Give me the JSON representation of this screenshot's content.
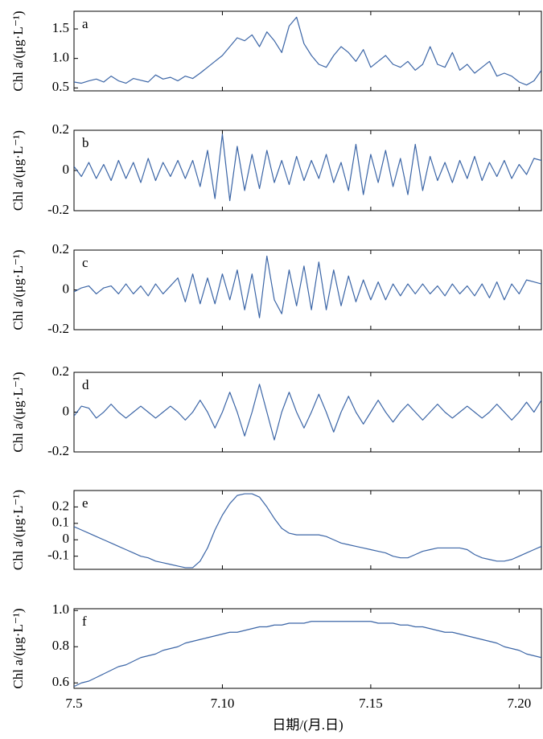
{
  "chart_data": [
    {
      "type": "line",
      "panel": "a",
      "ylabel": "Chl a/(μg·L⁻¹)",
      "color": "#3b65a6",
      "x": [
        5,
        5.25,
        5.5,
        5.75,
        6,
        6.25,
        6.5,
        6.75,
        7,
        7.25,
        7.5,
        7.75,
        8,
        8.25,
        8.5,
        8.75,
        9,
        9.25,
        9.5,
        9.75,
        10,
        10.25,
        10.5,
        10.75,
        11,
        11.25,
        11.5,
        11.75,
        12,
        12.25,
        12.5,
        12.75,
        13,
        13.25,
        13.5,
        13.75,
        14,
        14.25,
        14.5,
        14.75,
        15,
        15.25,
        15.5,
        15.75,
        16,
        16.25,
        16.5,
        16.75,
        17,
        17.25,
        17.5,
        17.75,
        18,
        18.25,
        18.5,
        18.75,
        19,
        19.25,
        19.5,
        19.75,
        20,
        20.25,
        20.5,
        20.75
      ],
      "values": [
        0.6,
        0.58,
        0.62,
        0.65,
        0.6,
        0.7,
        0.62,
        0.58,
        0.66,
        0.63,
        0.6,
        0.72,
        0.65,
        0.68,
        0.62,
        0.7,
        0.66,
        0.75,
        0.85,
        0.95,
        1.05,
        1.2,
        1.35,
        1.3,
        1.4,
        1.2,
        1.45,
        1.3,
        1.1,
        1.55,
        1.7,
        1.25,
        1.05,
        0.9,
        0.85,
        1.05,
        1.2,
        1.1,
        0.95,
        1.15,
        0.85,
        0.95,
        1.05,
        0.9,
        0.85,
        0.95,
        0.8,
        0.9,
        1.2,
        0.9,
        0.85,
        1.1,
        0.8,
        0.9,
        0.75,
        0.85,
        0.95,
        0.7,
        0.75,
        0.7,
        0.6,
        0.55,
        0.62,
        0.8
      ],
      "xlim": [
        5,
        20.75
      ],
      "xticks": [
        5,
        10,
        15,
        20
      ],
      "ylim": [
        0.45,
        1.8
      ],
      "yticks": [
        0.5,
        {
          "value": 1,
          "label": "1.0"
        },
        1.5
      ]
    },
    {
      "type": "line",
      "panel": "b",
      "ylabel": "Chl a/(μg·L⁻¹)",
      "color": "#3b65a6",
      "x": [
        5,
        5.25,
        5.5,
        5.75,
        6,
        6.25,
        6.5,
        6.75,
        7,
        7.25,
        7.5,
        7.75,
        8,
        8.25,
        8.5,
        8.75,
        9,
        9.25,
        9.5,
        9.75,
        10,
        10.25,
        10.5,
        10.75,
        11,
        11.25,
        11.5,
        11.75,
        12,
        12.25,
        12.5,
        12.75,
        13,
        13.25,
        13.5,
        13.75,
        14,
        14.25,
        14.5,
        14.75,
        15,
        15.25,
        15.5,
        15.75,
        16,
        16.25,
        16.5,
        16.75,
        17,
        17.25,
        17.5,
        17.75,
        18,
        18.25,
        18.5,
        18.75,
        19,
        19.25,
        19.5,
        19.75,
        20,
        20.25,
        20.5,
        20.75
      ],
      "values": [
        0.02,
        -0.03,
        0.04,
        -0.04,
        0.03,
        -0.05,
        0.05,
        -0.04,
        0.04,
        -0.06,
        0.06,
        -0.05,
        0.04,
        -0.03,
        0.05,
        -0.04,
        0.05,
        -0.08,
        0.1,
        -0.14,
        0.18,
        -0.15,
        0.12,
        -0.1,
        0.08,
        -0.09,
        0.1,
        -0.06,
        0.05,
        -0.07,
        0.07,
        -0.05,
        0.05,
        -0.04,
        0.08,
        -0.06,
        0.04,
        -0.1,
        0.13,
        -0.12,
        0.08,
        -0.06,
        0.1,
        -0.08,
        0.06,
        -0.12,
        0.13,
        -0.1,
        0.07,
        -0.05,
        0.04,
        -0.06,
        0.05,
        -0.04,
        0.07,
        -0.05,
        0.04,
        -0.03,
        0.05,
        -0.04,
        0.03,
        -0.02,
        0.06,
        0.05
      ],
      "xlim": [
        5,
        20.75
      ],
      "xticks": [
        5,
        10,
        15,
        20
      ],
      "ylim": [
        -0.2,
        0.2
      ],
      "yticks": [
        -0.2,
        0,
        0.2
      ]
    },
    {
      "type": "line",
      "panel": "c",
      "ylabel": "Chl a/(μg·L⁻¹)",
      "color": "#3b65a6",
      "x": [
        5,
        5.25,
        5.5,
        5.75,
        6,
        6.25,
        6.5,
        6.75,
        7,
        7.25,
        7.5,
        7.75,
        8,
        8.25,
        8.5,
        8.75,
        9,
        9.25,
        9.5,
        9.75,
        10,
        10.25,
        10.5,
        10.75,
        11,
        11.25,
        11.5,
        11.75,
        12,
        12.25,
        12.5,
        12.75,
        13,
        13.25,
        13.5,
        13.75,
        14,
        14.25,
        14.5,
        14.75,
        15,
        15.25,
        15.5,
        15.75,
        16,
        16.25,
        16.5,
        16.75,
        17,
        17.25,
        17.5,
        17.75,
        18,
        18.25,
        18.5,
        18.75,
        19,
        19.25,
        19.5,
        19.75,
        20,
        20.25,
        20.5,
        20.75
      ],
      "values": [
        -0.01,
        0.01,
        0.02,
        -0.02,
        0.01,
        0.02,
        -0.02,
        0.03,
        -0.02,
        0.02,
        -0.03,
        0.03,
        -0.02,
        0.02,
        0.06,
        -0.06,
        0.08,
        -0.07,
        0.06,
        -0.07,
        0.08,
        -0.05,
        0.1,
        -0.1,
        0.08,
        -0.14,
        0.17,
        -0.05,
        -0.12,
        0.1,
        -0.08,
        0.12,
        -0.1,
        0.14,
        -0.1,
        0.1,
        -0.08,
        0.07,
        -0.06,
        0.05,
        -0.05,
        0.04,
        -0.05,
        0.03,
        -0.03,
        0.03,
        -0.02,
        0.03,
        -0.02,
        0.02,
        -0.03,
        0.03,
        -0.02,
        0.02,
        -0.03,
        0.03,
        -0.04,
        0.04,
        -0.05,
        0.03,
        -0.02,
        0.05,
        0.04,
        0.03
      ],
      "xlim": [
        5,
        20.75
      ],
      "xticks": [
        5,
        10,
        15,
        20
      ],
      "ylim": [
        -0.2,
        0.2
      ],
      "yticks": [
        -0.2,
        0,
        0.2
      ]
    },
    {
      "type": "line",
      "panel": "d",
      "ylabel": "Chl a/(μg·L⁻¹)",
      "color": "#3b65a6",
      "x": [
        5,
        5.25,
        5.5,
        5.75,
        6,
        6.25,
        6.5,
        6.75,
        7,
        7.25,
        7.5,
        7.75,
        8,
        8.25,
        8.5,
        8.75,
        9,
        9.25,
        9.5,
        9.75,
        10,
        10.25,
        10.5,
        10.75,
        11,
        11.25,
        11.5,
        11.75,
        12,
        12.25,
        12.5,
        12.75,
        13,
        13.25,
        13.5,
        13.75,
        14,
        14.25,
        14.5,
        14.75,
        15,
        15.25,
        15.5,
        15.75,
        16,
        16.25,
        16.5,
        16.75,
        17,
        17.25,
        17.5,
        17.75,
        18,
        18.25,
        18.5,
        18.75,
        19,
        19.25,
        19.5,
        19.75,
        20,
        20.25,
        20.5,
        20.75
      ],
      "values": [
        -0.02,
        0.03,
        0.02,
        -0.03,
        0,
        0.04,
        0,
        -0.03,
        0,
        0.03,
        0,
        -0.03,
        0,
        0.03,
        0,
        -0.04,
        0,
        0.06,
        0,
        -0.08,
        0,
        0.1,
        0,
        -0.12,
        0,
        0.14,
        0,
        -0.14,
        0,
        0.1,
        0,
        -0.08,
        0,
        0.09,
        0,
        -0.1,
        0,
        0.08,
        0,
        -0.06,
        0,
        0.06,
        0,
        -0.05,
        0,
        0.04,
        0,
        -0.04,
        0,
        0.04,
        0,
        -0.03,
        0,
        0.03,
        0,
        -0.03,
        0,
        0.04,
        0,
        -0.04,
        0,
        0.05,
        0,
        0.06
      ],
      "xlim": [
        5,
        20.75
      ],
      "xticks": [
        5,
        10,
        15,
        20
      ],
      "ylim": [
        -0.2,
        0.2
      ],
      "yticks": [
        -0.2,
        0,
        0.2
      ]
    },
    {
      "type": "line",
      "panel": "e",
      "ylabel": "Chl a/(μg·L⁻¹)",
      "color": "#3b65a6",
      "x": [
        5,
        5.25,
        5.5,
        5.75,
        6,
        6.25,
        6.5,
        6.75,
        7,
        7.25,
        7.5,
        7.75,
        8,
        8.25,
        8.5,
        8.75,
        9,
        9.25,
        9.5,
        9.75,
        10,
        10.25,
        10.5,
        10.75,
        11,
        11.25,
        11.5,
        11.75,
        12,
        12.25,
        12.5,
        12.75,
        13,
        13.25,
        13.5,
        13.75,
        14,
        14.25,
        14.5,
        14.75,
        15,
        15.25,
        15.5,
        15.75,
        16,
        16.25,
        16.5,
        16.75,
        17,
        17.25,
        17.5,
        17.75,
        18,
        18.25,
        18.5,
        18.75,
        19,
        19.25,
        19.5,
        19.75,
        20,
        20.25,
        20.5,
        20.75
      ],
      "values": [
        0.08,
        0.06,
        0.04,
        0.02,
        0,
        -0.02,
        -0.04,
        -0.06,
        -0.08,
        -0.1,
        -0.11,
        -0.13,
        -0.14,
        -0.15,
        -0.16,
        -0.17,
        -0.17,
        -0.13,
        -0.05,
        0.06,
        0.15,
        0.22,
        0.27,
        0.28,
        0.28,
        0.26,
        0.2,
        0.13,
        0.07,
        0.04,
        0.03,
        0.03,
        0.03,
        0.03,
        0.02,
        0,
        -0.02,
        -0.03,
        -0.04,
        -0.05,
        -0.06,
        -0.07,
        -0.08,
        -0.1,
        -0.11,
        -0.11,
        -0.09,
        -0.07,
        -0.06,
        -0.05,
        -0.05,
        -0.05,
        -0.05,
        -0.06,
        -0.09,
        -0.11,
        -0.12,
        -0.13,
        -0.13,
        -0.12,
        -0.1,
        -0.08,
        -0.06,
        -0.04
      ],
      "xlim": [
        5,
        20.75
      ],
      "xticks": [
        5,
        10,
        15,
        20
      ],
      "ylim": [
        -0.18,
        0.3
      ],
      "yticks": [
        -0.1,
        0,
        0.1,
        0.2
      ]
    },
    {
      "type": "line",
      "panel": "f",
      "ylabel": "Chl a/(μg·L⁻¹)",
      "xlabel": "日期/(月.日)",
      "color": "#3b65a6",
      "x": [
        5,
        5.25,
        5.5,
        5.75,
        6,
        6.25,
        6.5,
        6.75,
        7,
        7.25,
        7.5,
        7.75,
        8,
        8.25,
        8.5,
        8.75,
        9,
        9.25,
        9.5,
        9.75,
        10,
        10.25,
        10.5,
        10.75,
        11,
        11.25,
        11.5,
        11.75,
        12,
        12.25,
        12.5,
        12.75,
        13,
        13.25,
        13.5,
        13.75,
        14,
        14.25,
        14.5,
        14.75,
        15,
        15.25,
        15.5,
        15.75,
        16,
        16.25,
        16.5,
        16.75,
        17,
        17.25,
        17.5,
        17.75,
        18,
        18.25,
        18.5,
        18.75,
        19,
        19.25,
        19.5,
        19.75,
        20,
        20.25,
        20.5,
        20.75
      ],
      "values": [
        0.58,
        0.6,
        0.61,
        0.63,
        0.65,
        0.67,
        0.69,
        0.7,
        0.72,
        0.74,
        0.75,
        0.76,
        0.78,
        0.79,
        0.8,
        0.82,
        0.83,
        0.84,
        0.85,
        0.86,
        0.87,
        0.88,
        0.88,
        0.89,
        0.9,
        0.91,
        0.91,
        0.92,
        0.92,
        0.93,
        0.93,
        0.93,
        0.94,
        0.94,
        0.94,
        0.94,
        0.94,
        0.94,
        0.94,
        0.94,
        0.94,
        0.93,
        0.93,
        0.93,
        0.92,
        0.92,
        0.91,
        0.91,
        0.9,
        0.89,
        0.88,
        0.88,
        0.87,
        0.86,
        0.85,
        0.84,
        0.83,
        0.82,
        0.8,
        0.79,
        0.78,
        0.76,
        0.75,
        0.74
      ],
      "xlim": [
        5,
        20.75
      ],
      "xticks": [
        {
          "value": 5,
          "label": "7.5"
        },
        {
          "value": 10,
          "label": "7.10"
        },
        {
          "value": 15,
          "label": "7.15"
        },
        {
          "value": 20,
          "label": "7.20"
        }
      ],
      "ylim": [
        0.57,
        1.01
      ],
      "yticks": [
        0.6,
        0.8,
        {
          "value": 1,
          "label": "1.0"
        }
      ]
    }
  ]
}
